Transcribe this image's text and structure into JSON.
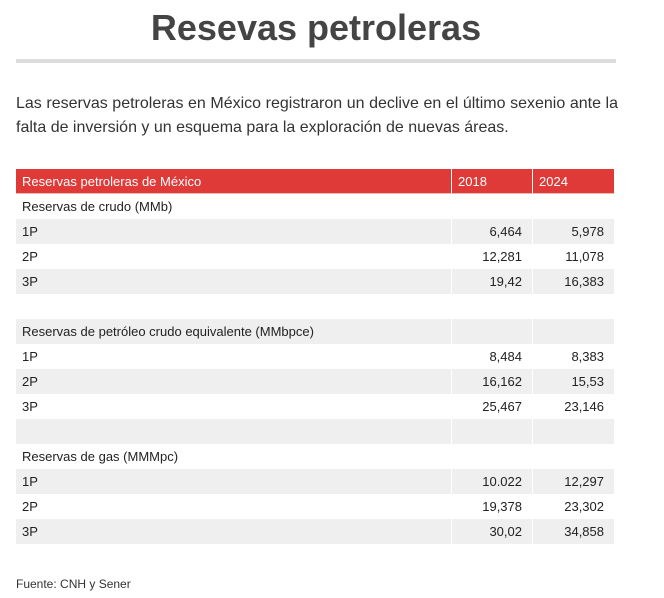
{
  "title": "Resevas petroleras",
  "intro": "Las reservas petroleras en México registraron un declive en el último sexenio ante la falta de inversión y un esquema para la exploración de nuevas áreas.",
  "table": {
    "headers": [
      "Reservas petroleras de México",
      "2018",
      "2024"
    ],
    "rows": [
      [
        "Reservas de crudo (MMb)",
        "",
        ""
      ],
      [
        "1P",
        "6,464",
        "5,978"
      ],
      [
        "2P",
        "12,281",
        "11,078"
      ],
      [
        "3P",
        "19,42",
        "16,383"
      ],
      [
        "",
        "",
        ""
      ],
      [
        "Reservas de petróleo crudo equivalente (MMbpce)",
        "",
        ""
      ],
      [
        "1P",
        "8,484",
        "8,383"
      ],
      [
        "2P",
        "16,162",
        "15,53"
      ],
      [
        "3P",
        "25,467",
        "23,146"
      ],
      [
        "",
        "",
        ""
      ],
      [
        "Reservas de gas (MMMpc)",
        "",
        ""
      ],
      [
        "1P",
        "10.022",
        "12,297"
      ],
      [
        "2P",
        "19,378",
        "23,302"
      ],
      [
        "3P",
        "30,02",
        "34,858"
      ]
    ]
  },
  "source": "Fuente: CNH y Sener",
  "colors": {
    "header_bg": "#e03a38",
    "stripe_bg": "#efefef",
    "title_rule": "#dcdcdc"
  }
}
